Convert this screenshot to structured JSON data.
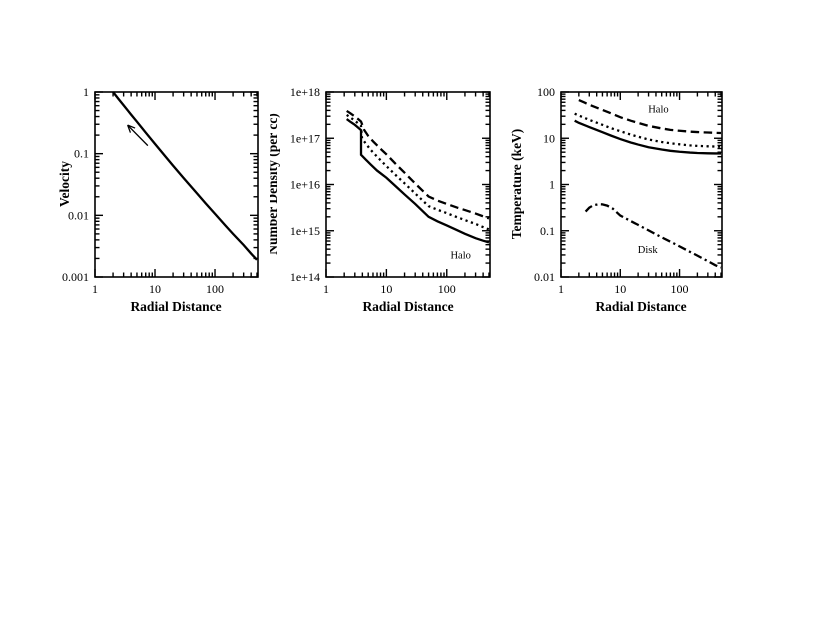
{
  "page": {
    "background": "#ffffff",
    "ink": "#000000"
  },
  "chart_data": [
    {
      "type": "line",
      "id": "velocity",
      "xlabel": "Radial Distance",
      "ylabel": "Velocity",
      "x_scale": "log",
      "y_scale": "log",
      "xlim": [
        1,
        520
      ],
      "ylim": [
        0.001,
        1
      ],
      "grid": false,
      "legend": "none",
      "x_ticks": [
        {
          "v": 1,
          "label": "1"
        },
        {
          "v": 10,
          "label": "10"
        },
        {
          "v": 100,
          "label": "100"
        }
      ],
      "y_ticks": [
        {
          "v": 1,
          "label": "1"
        },
        {
          "v": 0.1,
          "label": "0.1"
        },
        {
          "v": 0.01,
          "label": "0.01"
        },
        {
          "v": 0.001,
          "label": "0.001"
        }
      ],
      "series": [
        {
          "name": "velocity-profile",
          "style": "solid",
          "x": [
            2,
            2.5,
            3,
            4,
            5,
            7,
            10,
            15,
            20,
            30,
            50,
            70,
            100,
            150,
            200,
            300,
            400,
            500
          ],
          "y": [
            1.0,
            0.76,
            0.61,
            0.43,
            0.33,
            0.22,
            0.144,
            0.0896,
            0.064,
            0.0404,
            0.0228,
            0.0156,
            0.0106,
            0.0068,
            0.005,
            0.0033,
            0.0024,
            0.0019
          ]
        }
      ],
      "annotations": [
        {
          "type": "arrow",
          "from": [
            7.6,
            0.135
          ],
          "to": [
            3.5,
            0.29
          ]
        }
      ]
    },
    {
      "type": "line",
      "id": "number-density",
      "xlabel": "Radial Distance",
      "ylabel": "Number Density (per cc)",
      "x_scale": "log",
      "y_scale": "log",
      "xlim": [
        1,
        520
      ],
      "ylim": [
        100000000000000.0,
        1e+18
      ],
      "grid": false,
      "legend": "none",
      "x_ticks": [
        {
          "v": 1,
          "label": "1"
        },
        {
          "v": 10,
          "label": "10"
        },
        {
          "v": 100,
          "label": "100"
        }
      ],
      "y_ticks": [
        {
          "v": 1e+18,
          "label": "1e+18"
        },
        {
          "v": 1e+17,
          "label": "1e+17"
        },
        {
          "v": 1e+16,
          "label": "1e+16"
        },
        {
          "v": 1000000000000000.0,
          "label": "1e+15"
        },
        {
          "v": 100000000000000.0,
          "label": "1e+14"
        }
      ],
      "series": [
        {
          "name": "density-solid",
          "style": "solid",
          "x": [
            2.2,
            2.5,
            3,
            3.4,
            3.8,
            3.8,
            4.5,
            5.5,
            7,
            10,
            15,
            20,
            30,
            50,
            70,
            100,
            150,
            200,
            300,
            400,
            500
          ],
          "y": [
            2.6e+17,
            2.3e+17,
            1.95e+17,
            1.7e+17,
            1.5e+17,
            4.4e+16,
            3.5e+16,
            2.7e+16,
            2e+16,
            1.4e+16,
            8600000000000000.0,
            6100000000000000.0,
            3800000000000000.0,
            2000000000000000.0,
            1600000000000000.0,
            1300000000000000.0,
            1020000000000000.0,
            860000000000000.0,
            690000000000000.0,
            610000000000000.0,
            560000000000000.0
          ]
        },
        {
          "name": "density-dotted",
          "style": "dotted",
          "x": [
            2.2,
            2.5,
            3,
            3.4,
            3.8,
            3.95,
            4.5,
            5.5,
            7,
            10,
            15,
            20,
            30,
            50,
            70,
            100,
            150,
            200,
            300,
            400,
            500
          ],
          "y": [
            3.2e+17,
            2.85e+17,
            2.4e+17,
            2.1e+17,
            1.85e+17,
            1e+17,
            7.8e+16,
            5.6e+16,
            4e+16,
            2.5e+16,
            1.5e+16,
            1.06e+16,
            6400000000000000.0,
            3400000000000000.0,
            2850000000000000.0,
            2400000000000000.0,
            1950000000000000.0,
            1700000000000000.0,
            1400000000000000.0,
            1200000000000000.0,
            1070000000000000.0
          ]
        },
        {
          "name": "density-dashed",
          "style": "dashed",
          "x": [
            2.2,
            2.5,
            3,
            3.4,
            3.8,
            4.3,
            5,
            6,
            8,
            10,
            15,
            20,
            30,
            50,
            70,
            100,
            150,
            200,
            300,
            400,
            500
          ],
          "y": [
            3.9e+17,
            3.5e+17,
            2.95e+17,
            2.6e+17,
            2.3e+17,
            1.5e+17,
            1.12e+17,
            8.6e+16,
            5.9e+16,
            4.5e+16,
            2.6e+16,
            1.8e+16,
            1.05e+16,
            5500000000000000.0,
            4500000000000000.0,
            3800000000000000.0,
            3150000000000000.0,
            2800000000000000.0,
            2350000000000000.0,
            2050000000000000.0,
            1850000000000000.0
          ]
        }
      ],
      "annotations": [
        {
          "type": "text",
          "text": "Halo",
          "at": [
            170,
            250000000000000.0
          ]
        }
      ]
    },
    {
      "type": "line",
      "id": "temperature",
      "xlabel": "Radial Distance",
      "ylabel": "Temperature (keV)",
      "x_scale": "log",
      "y_scale": "log",
      "xlim": [
        1,
        520
      ],
      "ylim": [
        0.01,
        100
      ],
      "grid": false,
      "legend": "none",
      "x_ticks": [
        {
          "v": 1,
          "label": "1"
        },
        {
          "v": 10,
          "label": "10"
        },
        {
          "v": 100,
          "label": "100"
        }
      ],
      "y_ticks": [
        {
          "v": 100,
          "label": "100"
        },
        {
          "v": 10,
          "label": "10"
        },
        {
          "v": 1,
          "label": "1"
        },
        {
          "v": 0.1,
          "label": "0.1"
        },
        {
          "v": 0.01,
          "label": "0.01"
        }
      ],
      "series": [
        {
          "name": "halo-dashed",
          "style": "dashed",
          "x": [
            2,
            2.5,
            3,
            5,
            7,
            10,
            15,
            20,
            30,
            50,
            70,
            100,
            150,
            200,
            300,
            400,
            500
          ],
          "y": [
            67,
            59,
            53,
            41,
            34.5,
            28.5,
            24,
            21.5,
            18.5,
            16.3,
            15.2,
            14.5,
            13.9,
            13.6,
            13.3,
            13.1,
            13
          ]
        },
        {
          "name": "halo-dotted",
          "style": "dotted",
          "x": [
            1.7,
            2,
            3,
            5,
            7,
            10,
            15,
            20,
            30,
            50,
            70,
            100,
            150,
            200,
            300,
            400,
            500
          ],
          "y": [
            34,
            31,
            25,
            19.5,
            16.5,
            14.2,
            12,
            10.8,
            9.4,
            8.3,
            7.8,
            7.4,
            7.0,
            6.85,
            6.7,
            6.63,
            6.6
          ]
        },
        {
          "name": "halo-solid",
          "style": "solid",
          "x": [
            1.7,
            2,
            3,
            5,
            7,
            10,
            15,
            20,
            30,
            50,
            70,
            100,
            150,
            200,
            300,
            400,
            500
          ],
          "y": [
            24,
            21.5,
            17.5,
            13.5,
            11.4,
            9.6,
            8.1,
            7.3,
            6.4,
            5.7,
            5.35,
            5.1,
            4.9,
            4.8,
            4.73,
            4.7,
            4.7
          ]
        },
        {
          "name": "disk-dashdot",
          "style": "dashdot",
          "x": [
            2.6,
            3.0,
            3.5,
            4.3,
            5,
            6,
            7.5,
            10,
            15,
            20,
            30,
            50,
            70,
            100,
            150,
            200,
            300,
            400,
            500
          ],
          "y": [
            0.26,
            0.315,
            0.355,
            0.375,
            0.372,
            0.35,
            0.3,
            0.213,
            0.162,
            0.134,
            0.102,
            0.072,
            0.058,
            0.046,
            0.035,
            0.029,
            0.022,
            0.018,
            0.016
          ]
        }
      ],
      "annotations": [
        {
          "type": "text",
          "text": "Halo",
          "at": [
            44,
            36
          ]
        },
        {
          "type": "text",
          "text": "Disk",
          "at": [
            29,
            0.033
          ]
        }
      ]
    }
  ]
}
